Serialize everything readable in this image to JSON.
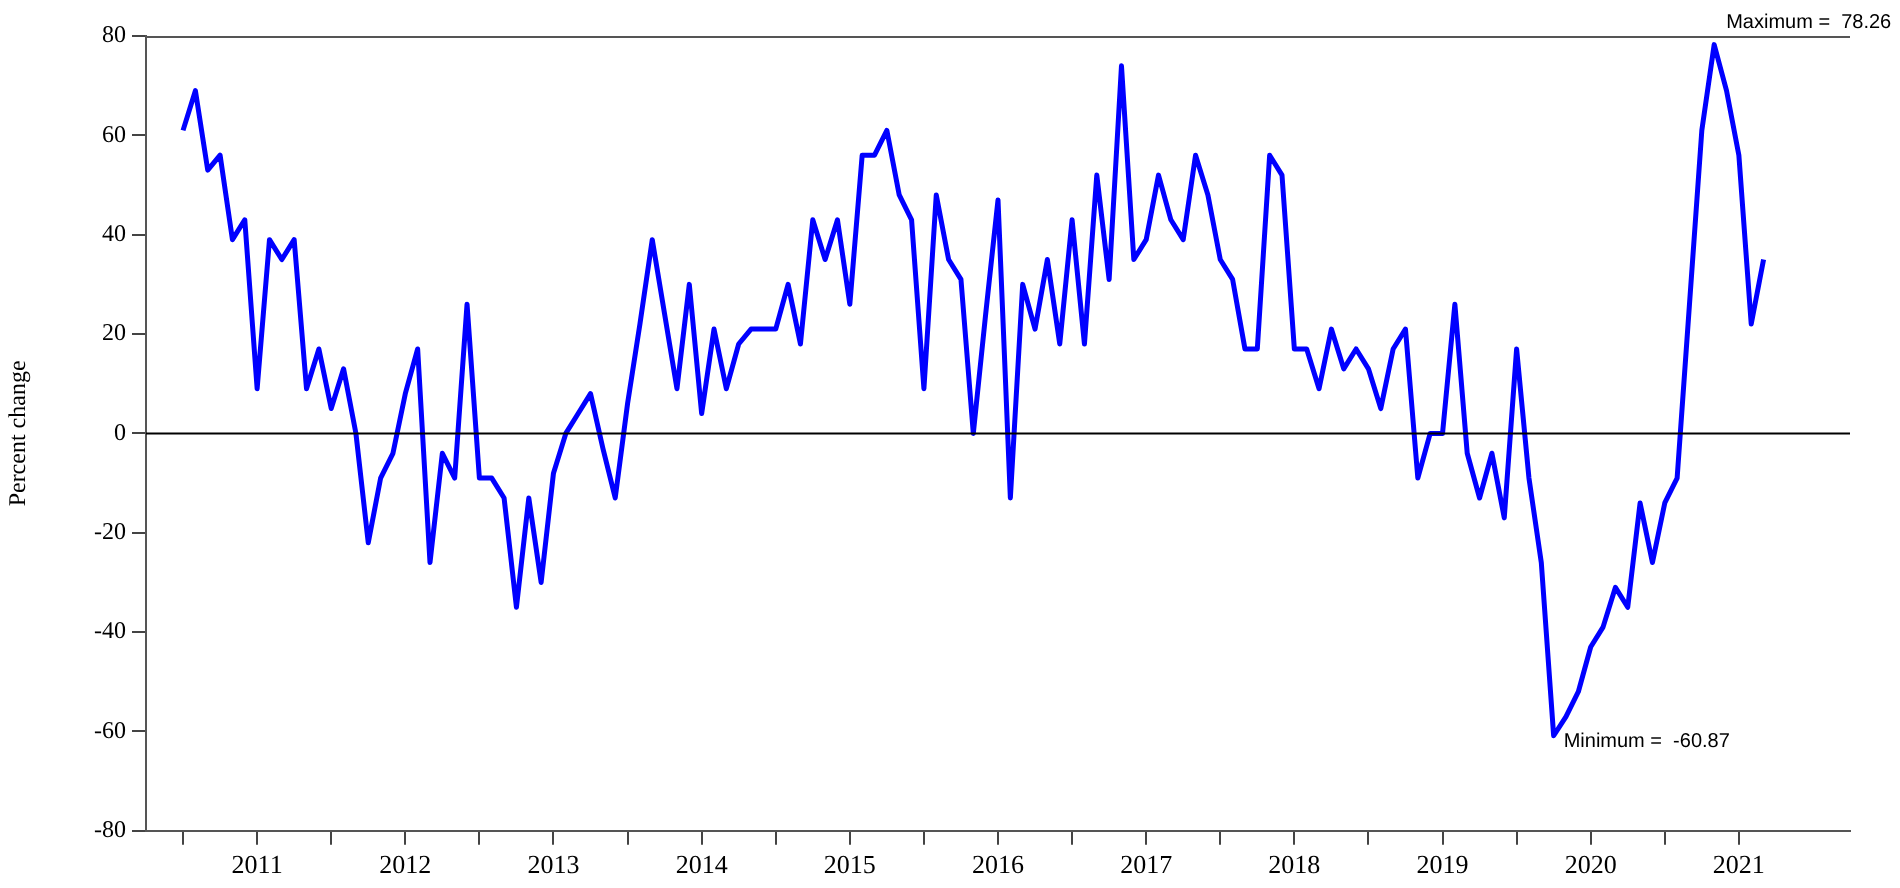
{
  "chart_data": {
    "type": "line",
    "ylabel": "Percent change",
    "x": [
      "2011-01",
      "2011-02",
      "2011-03",
      "2011-04",
      "2011-05",
      "2011-06",
      "2011-07",
      "2011-08",
      "2011-09",
      "2011-10",
      "2011-11",
      "2011-12",
      "2012-01",
      "2012-02",
      "2012-03",
      "2012-04",
      "2012-05",
      "2012-06",
      "2012-07",
      "2012-08",
      "2012-09",
      "2012-10",
      "2012-11",
      "2012-12",
      "2013-01",
      "2013-02",
      "2013-03",
      "2013-04",
      "2013-05",
      "2013-06",
      "2013-07",
      "2013-08",
      "2013-09",
      "2013-10",
      "2013-11",
      "2013-12",
      "2014-01",
      "2014-02",
      "2014-03",
      "2014-04",
      "2014-05",
      "2014-06",
      "2014-07",
      "2014-08",
      "2014-09",
      "2014-10",
      "2014-11",
      "2014-12",
      "2015-01",
      "2015-02",
      "2015-03",
      "2015-04",
      "2015-05",
      "2015-06",
      "2015-07",
      "2015-08",
      "2015-09",
      "2015-10",
      "2015-11",
      "2015-12",
      "2016-01",
      "2016-02",
      "2016-03",
      "2016-04",
      "2016-05",
      "2016-06",
      "2016-07",
      "2016-08",
      "2016-09",
      "2016-10",
      "2016-11",
      "2016-12",
      "2017-01",
      "2017-02",
      "2017-03",
      "2017-04",
      "2017-05",
      "2017-06",
      "2017-07",
      "2017-08",
      "2017-09",
      "2017-10",
      "2017-11",
      "2017-12",
      "2018-01",
      "2018-02",
      "2018-03",
      "2018-04",
      "2018-05",
      "2018-06",
      "2018-07",
      "2018-08",
      "2018-09",
      "2018-10",
      "2018-11",
      "2018-12",
      "2019-01",
      "2019-02",
      "2019-03",
      "2019-04",
      "2019-05",
      "2019-06",
      "2019-07",
      "2019-08",
      "2019-09",
      "2019-10",
      "2019-11",
      "2019-12",
      "2020-01",
      "2020-02",
      "2020-03",
      "2020-04",
      "2020-05",
      "2020-06",
      "2020-07",
      "2020-08",
      "2020-09",
      "2020-10",
      "2020-11",
      "2020-12",
      "2021-01",
      "2021-02",
      "2021-03",
      "2021-04",
      "2021-05",
      "2021-06",
      "2021-07",
      "2021-08",
      "2021-09"
    ],
    "series": [
      {
        "color": "#0000ff",
        "values": [
          61,
          69,
          53,
          56,
          39,
          43,
          9,
          39,
          35,
          39,
          9,
          17,
          5,
          13,
          0,
          -22,
          -9,
          -4,
          8,
          17,
          -26,
          -4,
          -9,
          26,
          -9,
          -9,
          -13,
          -35,
          -13,
          -30,
          -8,
          0,
          4,
          8,
          -3,
          -13,
          6,
          22,
          39,
          24,
          9,
          30,
          4,
          21,
          9,
          18,
          21,
          21,
          21,
          30,
          18,
          43,
          35,
          43,
          26,
          56,
          56,
          61,
          48,
          43,
          9,
          48,
          35,
          31,
          0,
          24,
          47,
          -13,
          30,
          21,
          35,
          18,
          43,
          18,
          52,
          31,
          74,
          35,
          39,
          52,
          43,
          39,
          56,
          48,
          35,
          31,
          17,
          17,
          56,
          52,
          17,
          17,
          9,
          21,
          13,
          17,
          13,
          5,
          17,
          21,
          -9,
          0,
          0,
          26,
          -4,
          -13,
          -4,
          -17,
          17,
          -9,
          -26,
          -60.87,
          -57,
          -52,
          -43,
          -39,
          -31,
          -35,
          -14,
          -26,
          -14,
          -9,
          26,
          61,
          78.26,
          69,
          56,
          22,
          35
        ]
      }
    ],
    "xlim": [
      "2010-10",
      "2022-04"
    ],
    "xticks": [
      {
        "value": "2011-01",
        "label": null
      },
      {
        "value": "2011-07",
        "label": "2011"
      },
      {
        "value": "2012-01",
        "label": null
      },
      {
        "value": "2012-07",
        "label": "2012"
      },
      {
        "value": "2013-01",
        "label": null
      },
      {
        "value": "2013-07",
        "label": "2013"
      },
      {
        "value": "2014-01",
        "label": null
      },
      {
        "value": "2014-07",
        "label": "2014"
      },
      {
        "value": "2015-01",
        "label": null
      },
      {
        "value": "2015-07",
        "label": "2015"
      },
      {
        "value": "2016-01",
        "label": null
      },
      {
        "value": "2016-07",
        "label": "2016"
      },
      {
        "value": "2017-01",
        "label": null
      },
      {
        "value": "2017-07",
        "label": "2017"
      },
      {
        "value": "2018-01",
        "label": null
      },
      {
        "value": "2018-07",
        "label": "2018"
      },
      {
        "value": "2019-01",
        "label": null
      },
      {
        "value": "2019-07",
        "label": "2019"
      },
      {
        "value": "2020-01",
        "label": null
      },
      {
        "value": "2020-07",
        "label": "2020"
      },
      {
        "value": "2021-01",
        "label": null
      },
      {
        "value": "2021-07",
        "label": "2021"
      }
    ],
    "ylim": [
      -80,
      80
    ],
    "yticks": [
      -80,
      -60,
      -40,
      -20,
      0,
      20,
      40,
      60,
      80
    ],
    "ref_lines": [
      {
        "axis": "y",
        "value": 0,
        "color": "#000000"
      }
    ],
    "annotations": [
      {
        "text": "Maximum =  78.26",
        "x": "2021-05",
        "y": 78.26
      },
      {
        "text": "Minimum =  -60.87",
        "x": "2020-04",
        "y": -60.87
      }
    ],
    "grid": false,
    "legend": false
  }
}
